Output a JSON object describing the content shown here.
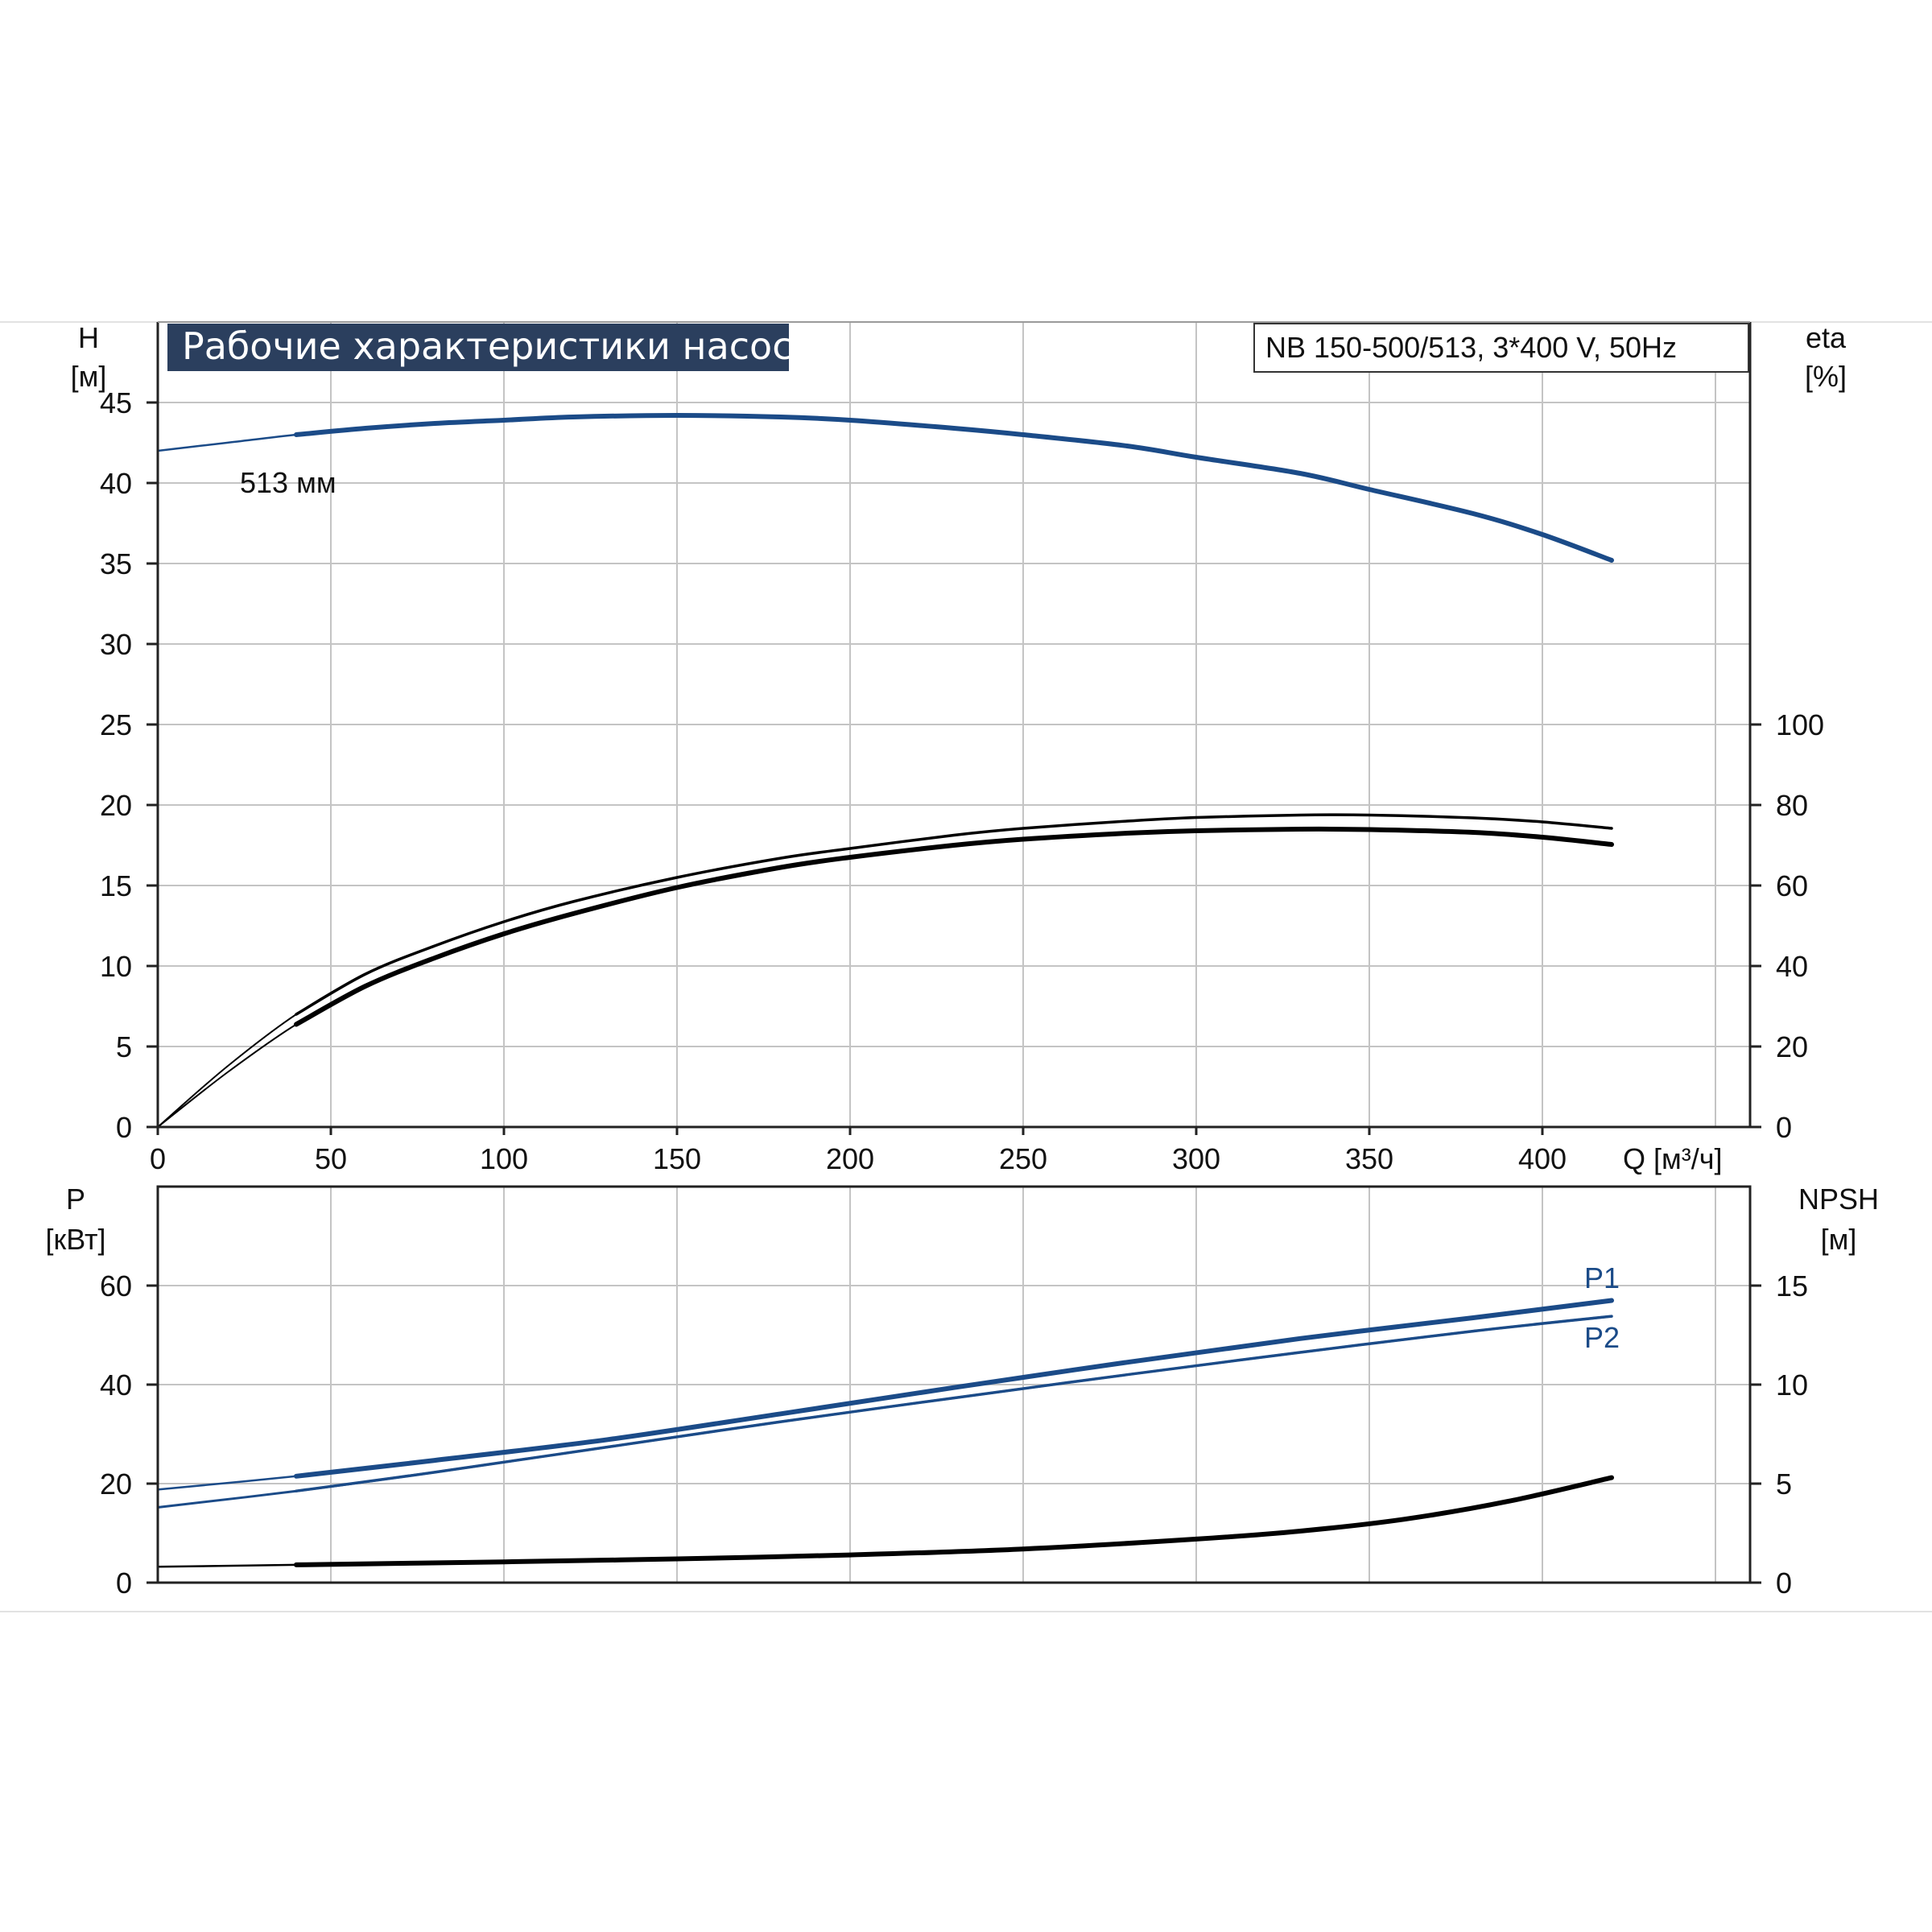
{
  "title": "Рабочие характеристики насоса",
  "model": "NB 150-500/513, 3*400 V, 50Hz",
  "colors": {
    "blue": "#1b4b88",
    "black": "#000000",
    "title_bg": "#2b3f5e",
    "grid": "#c4c4c4",
    "axis": "#222222"
  },
  "chart_data": [
    {
      "type": "line",
      "panel": "upper",
      "xlabel": "Q [м³/ч]",
      "ylabel_left": "H\n[м]",
      "ylabel_right": "eta\n[%]",
      "xlim": [
        0,
        460
      ],
      "ylim_left": [
        0,
        50
      ],
      "ylim_right": [
        0,
        200
      ],
      "x_ticks": [
        0,
        50,
        100,
        150,
        200,
        250,
        300,
        350,
        400
      ],
      "y_ticks_left": [
        0,
        5,
        10,
        15,
        20,
        25,
        30,
        35,
        40,
        45
      ],
      "y_ticks_right": [
        0,
        20,
        40,
        60,
        80,
        100
      ],
      "grid": true,
      "annotations": [
        {
          "text": "513 мм",
          "x": 25,
          "y": 44.3
        }
      ],
      "series": [
        {
          "name": "513 мм",
          "axis": "left",
          "color": "#1b4b88",
          "x": [
            0,
            20,
            40,
            60,
            80,
            100,
            120,
            150,
            180,
            200,
            230,
            250,
            280,
            300,
            330,
            350,
            380,
            400,
            420
          ],
          "y": [
            42.0,
            42.5,
            43.0,
            43.4,
            43.7,
            43.9,
            44.1,
            44.2,
            44.1,
            43.9,
            43.4,
            43.0,
            42.3,
            41.6,
            40.6,
            39.6,
            38.1,
            36.8,
            35.2
          ],
          "visible_from": 40
        },
        {
          "axis": "right",
          "color": "#000000",
          "x": [
            0,
            20,
            40,
            60,
            80,
            100,
            120,
            150,
            180,
            200,
            230,
            250,
            280,
            300,
            330,
            350,
            380,
            400,
            420
          ],
          "y": [
            0,
            13.5,
            25.5,
            35.0,
            42.0,
            48.0,
            53.0,
            59.5,
            64.5,
            67.0,
            70.0,
            71.5,
            73.0,
            73.6,
            74.0,
            73.9,
            73.2,
            72.0,
            70.2
          ],
          "visible_from": 40
        },
        {
          "axis": "right",
          "color": "#000000",
          "x": [
            0,
            20,
            40,
            60,
            80,
            100,
            120,
            150,
            180,
            200,
            230,
            250,
            280,
            300,
            330,
            350,
            380,
            400,
            420
          ],
          "y": [
            0,
            15.0,
            28.0,
            38.0,
            45.0,
            51.0,
            56.0,
            62.0,
            66.8,
            69.2,
            72.5,
            74.2,
            76.0,
            76.9,
            77.5,
            77.5,
            76.8,
            75.8,
            74.2
          ],
          "visible_from": 40
        }
      ]
    },
    {
      "type": "line",
      "panel": "lower",
      "ylabel_left": "P\n[кВт]",
      "ylabel_right": "NPSH\n[м]",
      "xlim": [
        0,
        460
      ],
      "ylim_left": [
        0,
        80
      ],
      "ylim_right": [
        0,
        20
      ],
      "y_ticks_left": [
        0,
        20,
        40,
        60
      ],
      "y_ticks_right": [
        0,
        5,
        10,
        15
      ],
      "grid": true,
      "series": [
        {
          "name": "P1",
          "axis": "left",
          "color": "#1b4b88",
          "x": [
            0,
            40,
            80,
            130,
            180,
            230,
            280,
            330,
            380,
            420
          ],
          "y": [
            18.8,
            21.5,
            24.7,
            28.9,
            34.1,
            39.4,
            44.5,
            49.3,
            53.5,
            57.0
          ],
          "visible_from": 40
        },
        {
          "name": "P2",
          "axis": "left",
          "color": "#1b4b88",
          "x": [
            0,
            40,
            80,
            130,
            180,
            230,
            280,
            330,
            380,
            420
          ],
          "y": [
            15.2,
            18.5,
            22.3,
            27.4,
            32.5,
            37.3,
            42.0,
            46.5,
            50.8,
            53.8
          ],
          "visible_from": 40
        },
        {
          "axis": "right",
          "color": "#000000",
          "x": [
            0,
            40,
            100,
            150,
            200,
            250,
            300,
            330,
            360,
            390,
            420
          ],
          "y": [
            0.8,
            0.9,
            1.05,
            1.2,
            1.4,
            1.7,
            2.2,
            2.6,
            3.2,
            4.1,
            5.3
          ],
          "visible_from": 40
        }
      ]
    }
  ]
}
